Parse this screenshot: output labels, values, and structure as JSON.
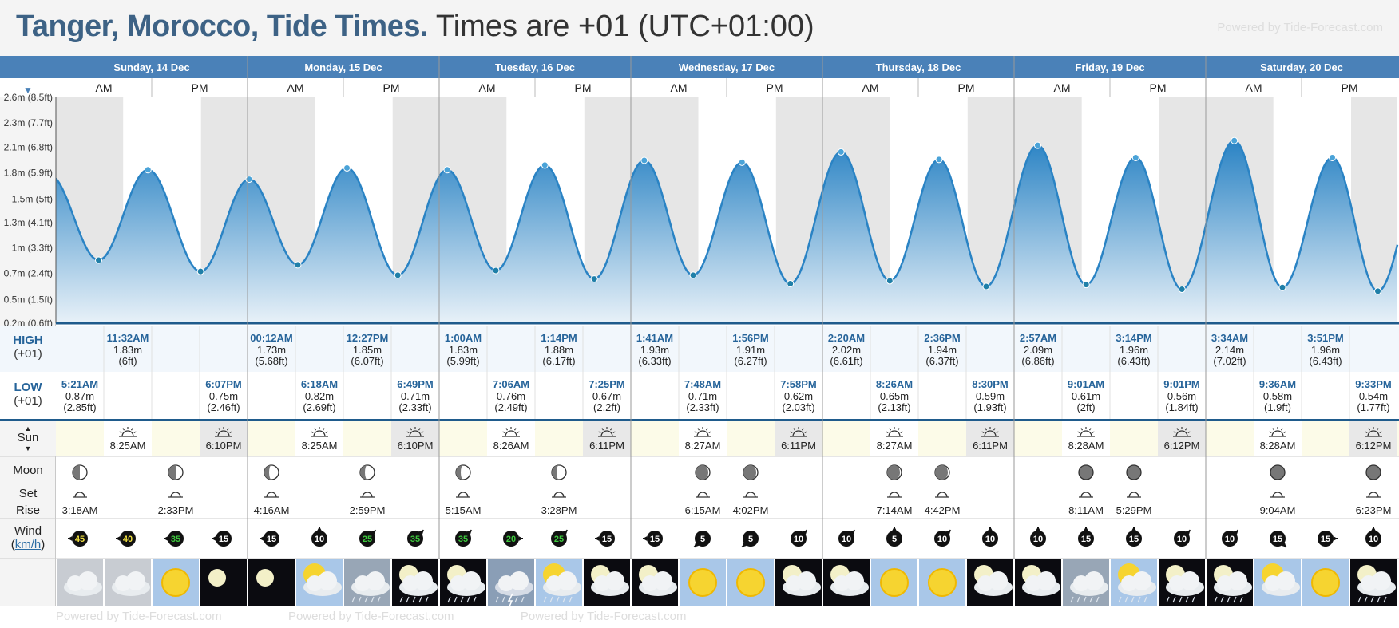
{
  "header": {
    "title": "Tanger, Morocco, Tide Times.",
    "subtitle": "Times are +01 (UTC+01:00)",
    "powered": "Powered by Tide-Forecast.com"
  },
  "labels": {
    "ampm": [
      "AM",
      "PM"
    ],
    "high": "HIGH",
    "low": "LOW",
    "tz": "(+01)",
    "sun": "Sun",
    "moon": "Moon",
    "set": "Set",
    "rise": "Rise",
    "wind": "Wind",
    "wind_unit": "km/h"
  },
  "colors": {
    "accent": "#4a81b8",
    "title": "#3d6285",
    "tide_line": "#2a83c4",
    "tide_fill_top": "#2a83c4",
    "tide_fill_bottom": "#e8f1f8",
    "night": "#e6e6e6",
    "day_yellow": "#fcfbe8",
    "high_bg": "#f2f7fc",
    "high_text": "#26649a",
    "low_text": "#26649a",
    "marker": "#2b8fb5"
  },
  "chart_data": {
    "type": "area",
    "title": "",
    "ylabel": "",
    "ylim": [
      0.2,
      2.6
    ],
    "ytick_labels": [
      "0.2m (0.6ft)",
      "0.5m (1.5ft)",
      "0.7m (2.4ft)",
      "1m (3.3ft)",
      "1.3m (4.1ft)",
      "1.5m (5ft)",
      "1.8m (5.9ft)",
      "2.1m (6.8ft)",
      "2.3m (7.7ft)",
      "2.6m (8.5ft)"
    ],
    "ytick_values": [
      0.2,
      0.45,
      0.73,
      1.0,
      1.27,
      1.52,
      1.8,
      2.07,
      2.33,
      2.6
    ],
    "days": [
      "Sunday, 14 Dec",
      "Monday, 15 Dec",
      "Tuesday, 16 Dec",
      "Wednesday, 17 Dec",
      "Thursday, 18 Dec",
      "Friday, 19 Dec",
      "Saturday, 20 Dec"
    ],
    "highs": [
      {
        "day": 0,
        "time": "11:32AM",
        "h": 11.53,
        "m": "1.83m",
        "ft": "(6ft)",
        "v": 1.83
      },
      {
        "day": 1,
        "time": "00:12AM",
        "h": 0.2,
        "m": "1.73m",
        "ft": "(5.68ft)",
        "v": 1.73
      },
      {
        "day": 1,
        "time": "12:27PM",
        "h": 12.45,
        "m": "1.85m",
        "ft": "(6.07ft)",
        "v": 1.85
      },
      {
        "day": 2,
        "time": "1:00AM",
        "h": 1.0,
        "m": "1.83m",
        "ft": "(5.99ft)",
        "v": 1.83
      },
      {
        "day": 2,
        "time": "1:14PM",
        "h": 13.23,
        "m": "1.88m",
        "ft": "(6.17ft)",
        "v": 1.88
      },
      {
        "day": 3,
        "time": "1:41AM",
        "h": 1.68,
        "m": "1.93m",
        "ft": "(6.33ft)",
        "v": 1.93
      },
      {
        "day": 3,
        "time": "1:56PM",
        "h": 13.93,
        "m": "1.91m",
        "ft": "(6.27ft)",
        "v": 1.91
      },
      {
        "day": 4,
        "time": "2:20AM",
        "h": 2.33,
        "m": "2.02m",
        "ft": "(6.61ft)",
        "v": 2.02
      },
      {
        "day": 4,
        "time": "2:36PM",
        "h": 14.6,
        "m": "1.94m",
        "ft": "(6.37ft)",
        "v": 1.94
      },
      {
        "day": 5,
        "time": "2:57AM",
        "h": 2.95,
        "m": "2.09m",
        "ft": "(6.86ft)",
        "v": 2.09
      },
      {
        "day": 5,
        "time": "3:14PM",
        "h": 15.23,
        "m": "1.96m",
        "ft": "(6.43ft)",
        "v": 1.96
      },
      {
        "day": 6,
        "time": "3:34AM",
        "h": 3.57,
        "m": "2.14m",
        "ft": "(7.02ft)",
        "v": 2.14
      },
      {
        "day": 6,
        "time": "3:51PM",
        "h": 15.85,
        "m": "1.96m",
        "ft": "(6.43ft)",
        "v": 1.96
      }
    ],
    "lows": [
      {
        "day": 0,
        "time": "5:21AM",
        "h": 5.35,
        "m": "0.87m",
        "ft": "(2.85ft)",
        "v": 0.87
      },
      {
        "day": 0,
        "time": "6:07PM",
        "h": 18.12,
        "m": "0.75m",
        "ft": "(2.46ft)",
        "v": 0.75
      },
      {
        "day": 1,
        "time": "6:18AM",
        "h": 6.3,
        "m": "0.82m",
        "ft": "(2.69ft)",
        "v": 0.82
      },
      {
        "day": 1,
        "time": "6:49PM",
        "h": 18.82,
        "m": "0.71m",
        "ft": "(2.33ft)",
        "v": 0.71
      },
      {
        "day": 2,
        "time": "7:06AM",
        "h": 7.1,
        "m": "0.76m",
        "ft": "(2.49ft)",
        "v": 0.76
      },
      {
        "day": 2,
        "time": "7:25PM",
        "h": 19.42,
        "m": "0.67m",
        "ft": "(2.2ft)",
        "v": 0.67
      },
      {
        "day": 3,
        "time": "7:48AM",
        "h": 7.8,
        "m": "0.71m",
        "ft": "(2.33ft)",
        "v": 0.71
      },
      {
        "day": 3,
        "time": "7:58PM",
        "h": 19.97,
        "m": "0.62m",
        "ft": "(2.03ft)",
        "v": 0.62
      },
      {
        "day": 4,
        "time": "8:26AM",
        "h": 8.43,
        "m": "0.65m",
        "ft": "(2.13ft)",
        "v": 0.65
      },
      {
        "day": 4,
        "time": "8:30PM",
        "h": 20.5,
        "m": "0.59m",
        "ft": "(1.93ft)",
        "v": 0.59
      },
      {
        "day": 5,
        "time": "9:01AM",
        "h": 9.02,
        "m": "0.61m",
        "ft": "(2ft)",
        "v": 0.61
      },
      {
        "day": 5,
        "time": "9:01PM",
        "h": 21.02,
        "m": "0.56m",
        "ft": "(1.84ft)",
        "v": 0.56
      },
      {
        "day": 6,
        "time": "9:36AM",
        "h": 9.6,
        "m": "0.58m",
        "ft": "(1.9ft)",
        "v": 0.58
      },
      {
        "day": 6,
        "time": "9:33PM",
        "h": 21.55,
        "m": "0.54m",
        "ft": "(1.77ft)",
        "v": 0.54
      }
    ],
    "sun": [
      {
        "rise": "8:25AM",
        "rh": 8.42,
        "set": "6:10PM",
        "sh": 18.17
      },
      {
        "rise": "8:25AM",
        "rh": 8.42,
        "set": "6:10PM",
        "sh": 18.17
      },
      {
        "rise": "8:26AM",
        "rh": 8.43,
        "set": "6:11PM",
        "sh": 18.18
      },
      {
        "rise": "8:27AM",
        "rh": 8.45,
        "set": "6:11PM",
        "sh": 18.18
      },
      {
        "rise": "8:27AM",
        "rh": 8.45,
        "set": "6:11PM",
        "sh": 18.18
      },
      {
        "rise": "8:28AM",
        "rh": 8.47,
        "set": "6:12PM",
        "sh": 18.2
      },
      {
        "rise": "8:28AM",
        "rh": 8.47,
        "set": "6:12PM",
        "sh": 18.2
      }
    ],
    "moon": [
      {
        "col": 0,
        "time": "3:18AM",
        "phase": "first-quarter"
      },
      {
        "col": 2,
        "time": "2:33PM",
        "phase": "first-quarter"
      },
      {
        "col": 4,
        "time": "4:16AM",
        "phase": "waning-half"
      },
      {
        "col": 6,
        "time": "2:59PM",
        "phase": "waning-half"
      },
      {
        "col": 8,
        "time": "5:15AM",
        "phase": "waning-half"
      },
      {
        "col": 10,
        "time": "3:28PM",
        "phase": "waning-half"
      },
      {
        "col": 13,
        "time": "6:15AM",
        "phase": "waning-crescent"
      },
      {
        "col": 14,
        "time": "4:02PM",
        "phase": "waning-crescent"
      },
      {
        "col": 17,
        "time": "7:14AM",
        "phase": "waning-crescent"
      },
      {
        "col": 18,
        "time": "4:42PM",
        "phase": "waning-crescent"
      },
      {
        "col": 21,
        "time": "8:11AM",
        "phase": "new"
      },
      {
        "col": 22,
        "time": "5:29PM",
        "phase": "new"
      },
      {
        "col": 25,
        "time": "9:04AM",
        "phase": "new"
      },
      {
        "col": 27,
        "time": "6:23PM",
        "phase": "new"
      }
    ],
    "wind": [
      {
        "speed": 45,
        "dir": 270
      },
      {
        "speed": 40,
        "dir": 270
      },
      {
        "speed": 35,
        "dir": 270
      },
      {
        "speed": 15,
        "dir": 270
      },
      {
        "speed": 15,
        "dir": 270
      },
      {
        "speed": 10,
        "dir": 0
      },
      {
        "speed": 25,
        "dir": 45
      },
      {
        "speed": 35,
        "dir": 45
      },
      {
        "speed": 35,
        "dir": 45
      },
      {
        "speed": 20,
        "dir": 90
      },
      {
        "speed": 25,
        "dir": 45
      },
      {
        "speed": 15,
        "dir": 270
      },
      {
        "speed": 15,
        "dir": 270
      },
      {
        "speed": 5,
        "dir": 225
      },
      {
        "speed": 5,
        "dir": 225
      },
      {
        "speed": 10,
        "dir": 45
      },
      {
        "speed": 10,
        "dir": 45
      },
      {
        "speed": 5,
        "dir": 0
      },
      {
        "speed": 10,
        "dir": 45
      },
      {
        "speed": 10,
        "dir": 0
      },
      {
        "speed": 10,
        "dir": 0
      },
      {
        "speed": 15,
        "dir": 0
      },
      {
        "speed": 15,
        "dir": 0
      },
      {
        "speed": 10,
        "dir": 45
      },
      {
        "speed": 10,
        "dir": 45
      },
      {
        "speed": 15,
        "dir": 135
      },
      {
        "speed": 15,
        "dir": 90
      },
      {
        "speed": 10,
        "dir": 0
      }
    ],
    "weather": [
      "cloudy",
      "cloudy",
      "sunny",
      "clear-night",
      "clear-night",
      "partly-sunny",
      "rain",
      "rain-night",
      "rain-night",
      "storm",
      "sun-rain",
      "partly-night",
      "partly-night",
      "sunny",
      "sunny",
      "partly-night",
      "partly-night",
      "sunny",
      "sunny",
      "partly-night",
      "partly-night",
      "cloudy-rain",
      "sun-rain",
      "rain-night",
      "rain-night",
      "partly-sunny",
      "sunny",
      "rain-night"
    ]
  }
}
